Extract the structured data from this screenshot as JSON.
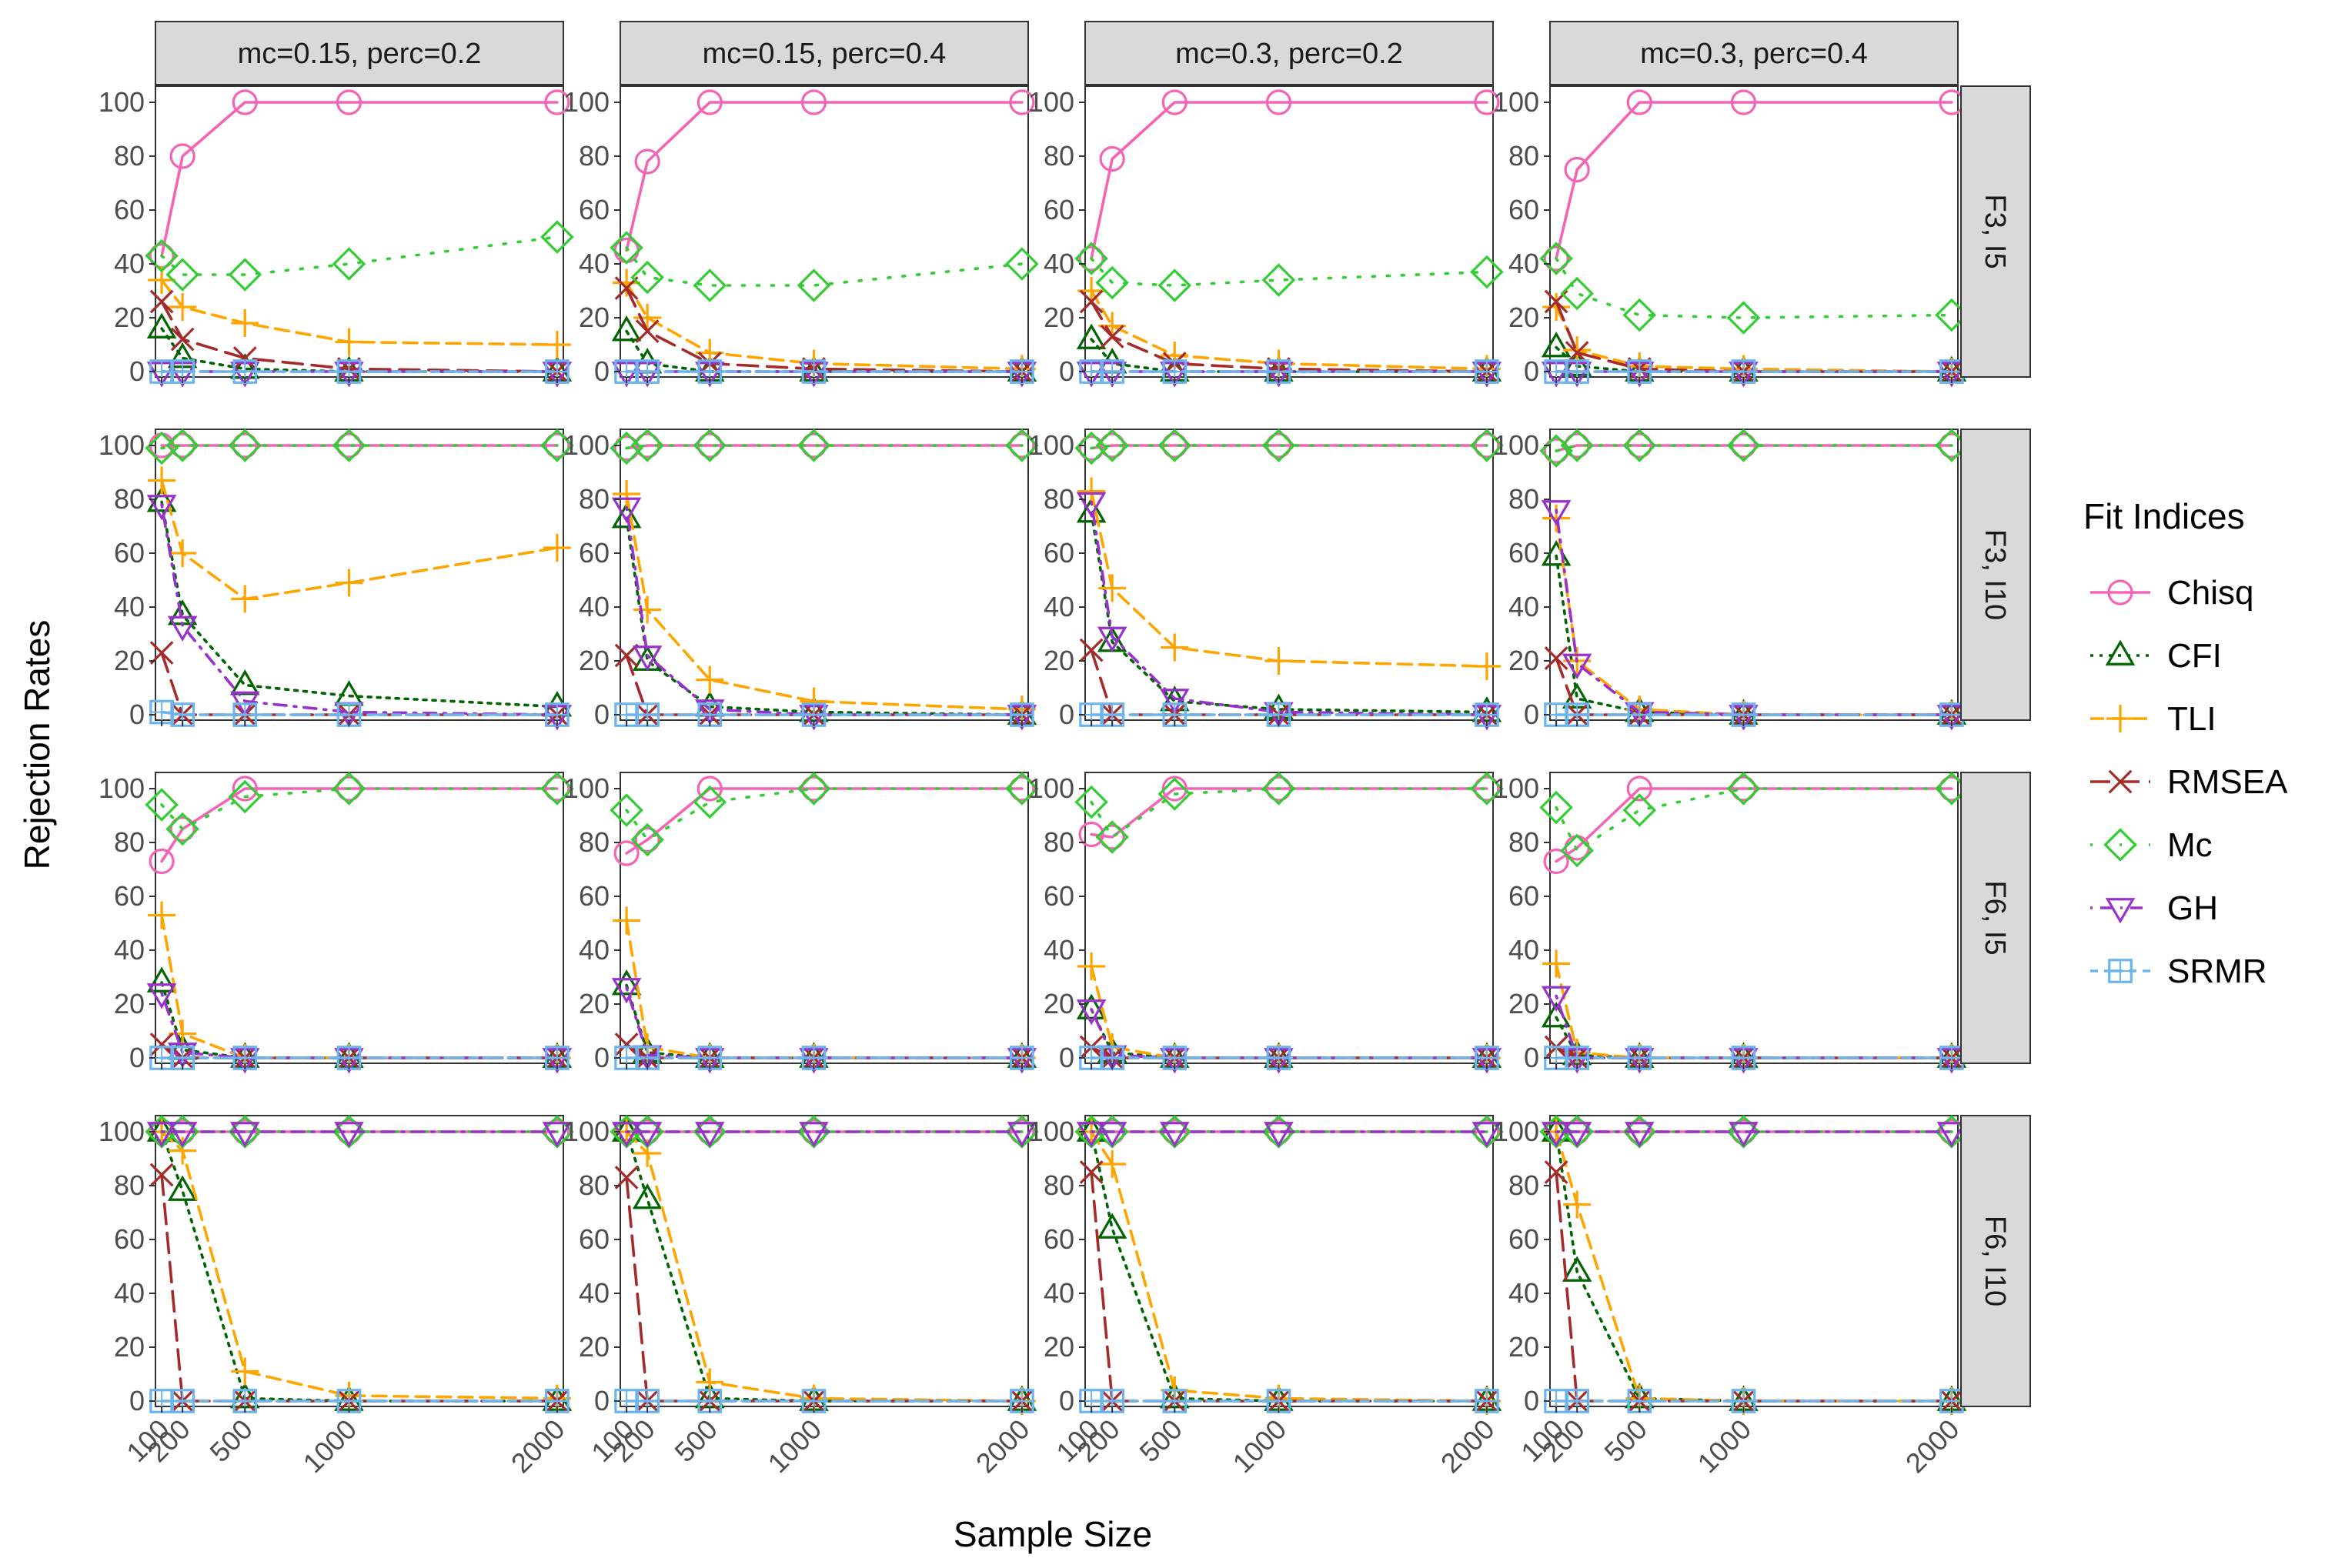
{
  "chart_data": {
    "type": "line",
    "xlabel": "Sample Size",
    "ylabel": "Rejection Rates",
    "legend_title": "Fit Indices",
    "legend_position": "right",
    "x": [
      100,
      200,
      500,
      1000,
      2000
    ],
    "x_tick_labels": [
      "100",
      "200",
      "500",
      "1000",
      "2000"
    ],
    "xlim": [
      70,
      2030
    ],
    "ylim": [
      -2,
      106
    ],
    "y_ticks": [
      0,
      20,
      40,
      60,
      80,
      100
    ],
    "y_tick_labels": [
      "0",
      "20",
      "40",
      "60",
      "80",
      "100"
    ],
    "grid": false,
    "columns": [
      "mc=0.15, perc=0.2",
      "mc=0.15, perc=0.4",
      "mc=0.3, perc=0.2",
      "mc=0.3, perc=0.4"
    ],
    "rows": [
      "F3, I5",
      "F3, I10",
      "F6, I5",
      "F6, I10"
    ],
    "indices": [
      {
        "key": "Chisq",
        "name": "Chisq",
        "color": "#F564B4",
        "marker": "circle",
        "dash": "solid"
      },
      {
        "key": "CFI",
        "name": "CFI",
        "color": "#006400",
        "marker": "triangle",
        "dash": "dotted"
      },
      {
        "key": "TLI",
        "name": "TLI",
        "color": "#FFA500",
        "marker": "plus",
        "dash": "dashed"
      },
      {
        "key": "RMSEA",
        "name": "RMSEA",
        "color": "#A52A2A",
        "marker": "cross",
        "dash": "longdash"
      },
      {
        "key": "Mc",
        "name": "Mc",
        "color": "#32CD32",
        "marker": "diamond",
        "dash": "dotted-sparse"
      },
      {
        "key": "GH",
        "name": "GH",
        "color": "#9932CC",
        "marker": "triangle-down",
        "dash": "dotdash"
      },
      {
        "key": "SRMR",
        "name": "SRMR",
        "color": "#6CB4EE",
        "marker": "square-plus",
        "dash": "twodash"
      }
    ],
    "panels": [
      [
        {
          "Chisq": [
            43,
            80,
            100,
            100,
            100
          ],
          "CFI": [
            16,
            5,
            1,
            0,
            0
          ],
          "TLI": [
            34,
            24,
            18,
            11,
            10
          ],
          "RMSEA": [
            26,
            12,
            5,
            1,
            0
          ],
          "Mc": [
            43,
            36,
            36,
            40,
            50
          ],
          "GH": [
            0,
            0,
            0,
            0,
            0
          ],
          "SRMR": [
            0,
            0,
            0,
            0,
            0
          ]
        },
        {
          "Chisq": [
            45,
            78,
            100,
            100,
            100
          ],
          "CFI": [
            15,
            3,
            0,
            0,
            0
          ],
          "TLI": [
            33,
            20,
            7,
            3,
            1
          ],
          "RMSEA": [
            31,
            15,
            3,
            1,
            0
          ],
          "Mc": [
            46,
            35,
            32,
            32,
            40
          ],
          "GH": [
            0,
            0,
            0,
            0,
            0
          ],
          "SRMR": [
            0,
            0,
            0,
            0,
            0
          ]
        },
        {
          "Chisq": [
            42,
            79,
            100,
            100,
            100
          ],
          "CFI": [
            12,
            3,
            0,
            0,
            0
          ],
          "TLI": [
            30,
            17,
            6,
            3,
            1
          ],
          "RMSEA": [
            26,
            13,
            3,
            1,
            0
          ],
          "Mc": [
            42,
            33,
            32,
            34,
            37
          ],
          "GH": [
            0,
            0,
            0,
            0,
            0
          ],
          "SRMR": [
            0,
            0,
            0,
            0,
            0
          ]
        },
        {
          "Chisq": [
            42,
            75,
            100,
            100,
            100
          ],
          "CFI": [
            9,
            2,
            0,
            0,
            0
          ],
          "TLI": [
            24,
            8,
            2,
            1,
            0
          ],
          "RMSEA": [
            26,
            7,
            1,
            0,
            0
          ],
          "Mc": [
            42,
            29,
            21,
            20,
            21
          ],
          "GH": [
            0,
            0,
            0,
            0,
            0
          ],
          "SRMR": [
            0,
            0,
            0,
            0,
            0
          ]
        }
      ],
      [
        {
          "Chisq": [
            100,
            100,
            100,
            100,
            100
          ],
          "CFI": [
            79,
            37,
            11,
            7,
            3
          ],
          "TLI": [
            87,
            60,
            43,
            49,
            62
          ],
          "RMSEA": [
            23,
            0,
            0,
            0,
            0
          ],
          "Mc": [
            99,
            100,
            100,
            100,
            100
          ],
          "GH": [
            78,
            33,
            5,
            1,
            0
          ],
          "SRMR": [
            1,
            0,
            0,
            0,
            0
          ]
        },
        {
          "Chisq": [
            99,
            100,
            100,
            100,
            100
          ],
          "CFI": [
            73,
            20,
            3,
            1,
            0
          ],
          "TLI": [
            82,
            39,
            13,
            5,
            2
          ],
          "RMSEA": [
            22,
            0,
            0,
            0,
            0
          ],
          "Mc": [
            99,
            100,
            100,
            100,
            100
          ],
          "GH": [
            77,
            22,
            2,
            0,
            0
          ],
          "SRMR": [
            0,
            0,
            0,
            0,
            0
          ]
        },
        {
          "Chisq": [
            99,
            100,
            100,
            100,
            100
          ],
          "CFI": [
            75,
            27,
            5,
            2,
            1
          ],
          "TLI": [
            83,
            47,
            25,
            20,
            18
          ],
          "RMSEA": [
            24,
            0,
            0,
            0,
            0
          ],
          "Mc": [
            99,
            100,
            100,
            100,
            100
          ],
          "GH": [
            79,
            29,
            6,
            1,
            0
          ],
          "SRMR": [
            0,
            0,
            0,
            0,
            0
          ]
        },
        {
          "Chisq": [
            98,
            100,
            100,
            100,
            100
          ],
          "CFI": [
            59,
            6,
            1,
            0,
            0
          ],
          "TLI": [
            73,
            20,
            2,
            0,
            0
          ],
          "RMSEA": [
            21,
            0,
            0,
            0,
            0
          ],
          "Mc": [
            98,
            100,
            100,
            100,
            100
          ],
          "GH": [
            76,
            19,
            1,
            0,
            0
          ],
          "SRMR": [
            0,
            0,
            0,
            0,
            0
          ]
        }
      ],
      [
        {
          "Chisq": [
            73,
            85,
            100,
            100,
            100
          ],
          "CFI": [
            28,
            3,
            0,
            0,
            0
          ],
          "TLI": [
            53,
            9,
            0,
            0,
            0
          ],
          "RMSEA": [
            5,
            0,
            0,
            0,
            0
          ],
          "Mc": [
            94,
            85,
            97,
            100,
            100
          ],
          "GH": [
            24,
            2,
            0,
            0,
            0
          ],
          "SRMR": [
            0,
            0,
            0,
            0,
            0
          ]
        },
        {
          "Chisq": [
            76,
            81,
            100,
            100,
            100
          ],
          "CFI": [
            27,
            2,
            0,
            0,
            0
          ],
          "TLI": [
            51,
            4,
            0,
            0,
            0
          ],
          "RMSEA": [
            5,
            0,
            0,
            0,
            0
          ],
          "Mc": [
            92,
            81,
            95,
            100,
            100
          ],
          "GH": [
            26,
            1,
            0,
            0,
            0
          ],
          "SRMR": [
            0,
            0,
            0,
            0,
            0
          ]
        },
        {
          "Chisq": [
            83,
            82,
            100,
            100,
            100
          ],
          "CFI": [
            18,
            2,
            0,
            0,
            0
          ],
          "TLI": [
            34,
            4,
            0,
            0,
            0
          ],
          "RMSEA": [
            4,
            0,
            0,
            0,
            0
          ],
          "Mc": [
            95,
            82,
            98,
            100,
            100
          ],
          "GH": [
            18,
            1,
            0,
            0,
            0
          ],
          "SRMR": [
            0,
            0,
            0,
            0,
            0
          ]
        },
        {
          "Chisq": [
            73,
            78,
            100,
            100,
            100
          ],
          "CFI": [
            15,
            1,
            0,
            0,
            0
          ],
          "TLI": [
            35,
            2,
            0,
            0,
            0
          ],
          "RMSEA": [
            4,
            0,
            0,
            0,
            0
          ],
          "Mc": [
            93,
            77,
            92,
            100,
            100
          ],
          "GH": [
            23,
            0,
            0,
            0,
            0
          ],
          "SRMR": [
            0,
            0,
            0,
            0,
            0
          ]
        }
      ],
      [
        {
          "Chisq": [
            100,
            100,
            100,
            100,
            100
          ],
          "CFI": [
            100,
            78,
            1,
            0,
            0
          ],
          "TLI": [
            100,
            93,
            11,
            2,
            1
          ],
          "RMSEA": [
            84,
            0,
            0,
            0,
            0
          ],
          "Mc": [
            100,
            100,
            100,
            100,
            100
          ],
          "GH": [
            100,
            100,
            100,
            100,
            100
          ],
          "SRMR": [
            0,
            0,
            0,
            0,
            0
          ]
        },
        {
          "Chisq": [
            100,
            100,
            100,
            100,
            100
          ],
          "CFI": [
            100,
            75,
            1,
            0,
            0
          ],
          "TLI": [
            100,
            92,
            7,
            1,
            0
          ],
          "RMSEA": [
            83,
            0,
            0,
            0,
            0
          ],
          "Mc": [
            100,
            100,
            100,
            100,
            100
          ],
          "GH": [
            100,
            100,
            100,
            100,
            100
          ],
          "SRMR": [
            0,
            0,
            0,
            0,
            0
          ]
        },
        {
          "Chisq": [
            100,
            100,
            100,
            100,
            100
          ],
          "CFI": [
            100,
            64,
            1,
            0,
            0
          ],
          "TLI": [
            100,
            88,
            4,
            1,
            0
          ],
          "RMSEA": [
            85,
            0,
            0,
            0,
            0
          ],
          "Mc": [
            100,
            100,
            100,
            100,
            100
          ],
          "GH": [
            100,
            100,
            100,
            100,
            100
          ],
          "SRMR": [
            0,
            0,
            0,
            0,
            0
          ]
        },
        {
          "Chisq": [
            100,
            100,
            100,
            100,
            100
          ],
          "CFI": [
            100,
            48,
            1,
            0,
            0
          ],
          "TLI": [
            100,
            73,
            1,
            0,
            0
          ],
          "RMSEA": [
            85,
            0,
            0,
            0,
            0
          ],
          "Mc": [
            100,
            100,
            100,
            100,
            100
          ],
          "GH": [
            100,
            100,
            100,
            100,
            100
          ],
          "SRMR": [
            0,
            0,
            0,
            0,
            0
          ]
        }
      ]
    ]
  }
}
